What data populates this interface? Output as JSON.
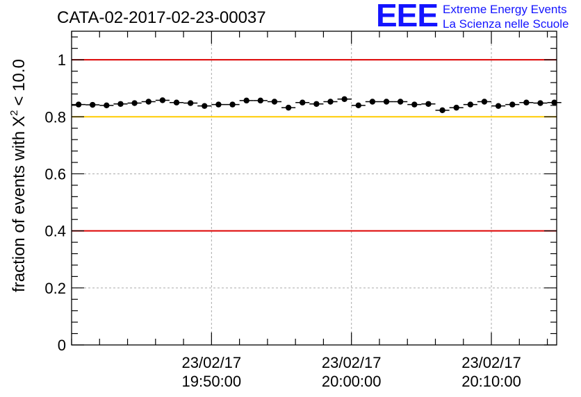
{
  "logo": {
    "mark": "EEE",
    "line1": "Extreme Energy Events",
    "line2": "La Scienza nelle Scuole",
    "color": "#1414ff"
  },
  "chart_data": {
    "type": "scatter",
    "title": "CATA-02-2017-02-23-00037",
    "ylabel": "fraction of events with",
    "ylabel_symbol": "X",
    "ylabel_superscript": "2",
    "ylabel_suffix": "< 10.0",
    "xlabel": "",
    "x_unit": "minutes",
    "xlim": [
      "23/02/17 19:40:00",
      "23/02/17 20:14:40"
    ],
    "ylim": [
      0,
      1.1
    ],
    "grid": true,
    "y_ticks": [
      0,
      0.2,
      0.4,
      0.6,
      0.8,
      1
    ],
    "y_tick_labels": [
      "0",
      "0.2",
      "0.4",
      "0.6",
      "0.8",
      "1"
    ],
    "x_ticks": [
      {
        "value": "23/02/17 19:50:00",
        "date": "23/02/17",
        "time": "19:50:00"
      },
      {
        "value": "23/02/17 20:00:00",
        "date": "23/02/17",
        "time": "20:00:00"
      },
      {
        "value": "23/02/17 20:10:00",
        "date": "23/02/17",
        "time": "20:10:00"
      }
    ],
    "reference_lines": [
      {
        "y": 1.0,
        "color": "#dd0000"
      },
      {
        "y": 0.8,
        "color": "#ffcc00"
      },
      {
        "y": 0.4,
        "color": "#dd0000"
      }
    ],
    "series": [
      {
        "marker_color": "#000000",
        "x_bin_width": 1,
        "x": [
          "19:40:30",
          "19:41:30",
          "19:42:30",
          "19:43:30",
          "19:44:30",
          "19:45:30",
          "19:46:30",
          "19:47:30",
          "19:48:30",
          "19:49:30",
          "19:50:30",
          "19:51:30",
          "19:52:30",
          "19:53:30",
          "19:54:30",
          "19:55:30",
          "19:56:30",
          "19:57:30",
          "19:58:30",
          "19:59:30",
          "20:00:30",
          "20:01:30",
          "20:02:30",
          "20:03:30",
          "20:04:30",
          "20:05:30",
          "20:06:30",
          "20:07:30",
          "20:08:30",
          "20:09:30",
          "20:10:30",
          "20:11:30",
          "20:12:30",
          "20:13:30",
          "20:14:30"
        ],
        "y": [
          0.843,
          0.842,
          0.84,
          0.845,
          0.848,
          0.853,
          0.858,
          0.85,
          0.848,
          0.838,
          0.843,
          0.843,
          0.857,
          0.857,
          0.853,
          0.832,
          0.85,
          0.845,
          0.853,
          0.862,
          0.84,
          0.853,
          0.853,
          0.853,
          0.843,
          0.845,
          0.823,
          0.832,
          0.843,
          0.853,
          0.838,
          0.843,
          0.85,
          0.848,
          0.85
        ],
        "y_err": [
          0.007,
          0.007,
          0.007,
          0.007,
          0.007,
          0.007,
          0.007,
          0.007,
          0.007,
          0.007,
          0.007,
          0.007,
          0.007,
          0.007,
          0.007,
          0.007,
          0.007,
          0.007,
          0.007,
          0.007,
          0.007,
          0.007,
          0.007,
          0.007,
          0.007,
          0.007,
          0.007,
          0.007,
          0.007,
          0.007,
          0.007,
          0.007,
          0.007,
          0.007,
          0.007
        ]
      }
    ]
  }
}
